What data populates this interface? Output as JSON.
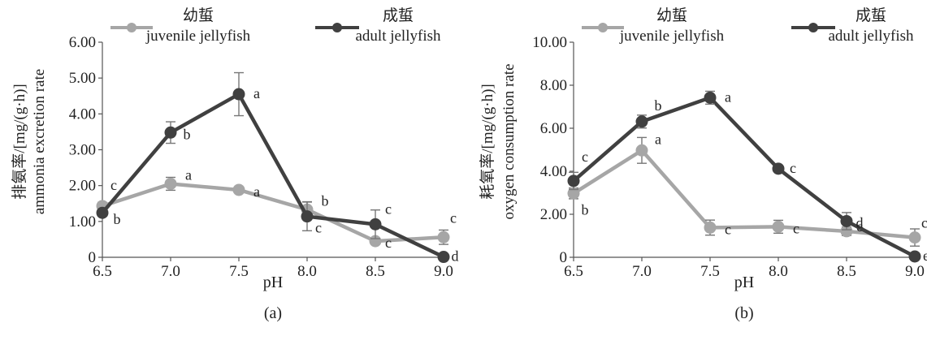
{
  "chart_data": [
    {
      "type": "line",
      "panel_label": "(a)",
      "xlabel": "pH",
      "ylabel_cn": "排氨率/[mg/(g·h)]",
      "ylabel_en": "ammonia excretion rate",
      "ylim": [
        0,
        6
      ],
      "yticks": [
        "0",
        "1.00",
        "2.00",
        "3.00",
        "4.00",
        "5.00",
        "6.00"
      ],
      "yticks_values": [
        0,
        1,
        2,
        3,
        4,
        5,
        6
      ],
      "categories": [
        "6.5",
        "7.0",
        "7.5",
        "8.0",
        "8.5",
        "9.0"
      ],
      "grid": false,
      "legend_position": "top",
      "series": [
        {
          "name_cn": "幼蜇",
          "name_en": "juvenile jellyfish",
          "color": "#a6a6a6",
          "values": [
            1.43,
            2.05,
            1.88,
            1.33,
            0.45,
            0.56
          ],
          "errors": [
            0.1,
            0.18,
            0.08,
            0.22,
            0.08,
            0.2
          ],
          "labels": [
            "c",
            "a",
            "a",
            "b",
            "c",
            "c"
          ]
        },
        {
          "name_cn": "成蜇",
          "name_en": "adult jellyfish",
          "color": "#404040",
          "values": [
            1.24,
            3.48,
            4.55,
            1.14,
            0.92,
            0.01
          ],
          "errors": [
            0.06,
            0.3,
            0.6,
            0.4,
            0.4,
            0.02
          ],
          "labels": [
            "b",
            "b",
            "a",
            "c",
            "c",
            "d"
          ]
        }
      ]
    },
    {
      "type": "line",
      "panel_label": "(b)",
      "xlabel": "pH",
      "ylabel_cn": "耗氧率/[mg/(g·h)]",
      "ylabel_en": "oxygen consumption rate",
      "ylim": [
        0,
        10
      ],
      "yticks": [
        "0",
        "2.00",
        "4.00",
        "6.00",
        "8.00",
        "10.00"
      ],
      "yticks_values": [
        0,
        2,
        4,
        6,
        8,
        10
      ],
      "categories": [
        "6.5",
        "7.0",
        "7.5",
        "8.0",
        "8.5",
        "9.0"
      ],
      "grid": false,
      "legend_position": "top",
      "series": [
        {
          "name_cn": "幼蜇",
          "name_en": "juvenile jellyfish",
          "color": "#a6a6a6",
          "values": [
            2.97,
            4.97,
            1.38,
            1.42,
            1.21,
            0.92
          ],
          "errors": [
            0.25,
            0.6,
            0.35,
            0.3,
            0.2,
            0.4
          ],
          "labels": [
            "b",
            "a",
            "c",
            "c",
            "c",
            "c"
          ]
        },
        {
          "name_cn": "成蜇",
          "name_en": "adult jellyfish",
          "color": "#404040",
          "values": [
            3.55,
            6.31,
            7.42,
            4.12,
            1.68,
            0.04
          ],
          "errors": [
            0.4,
            0.3,
            0.3,
            0.1,
            0.4,
            0.05
          ],
          "labels": [
            "c",
            "b",
            "a",
            "c",
            "d",
            "e"
          ]
        }
      ]
    }
  ]
}
